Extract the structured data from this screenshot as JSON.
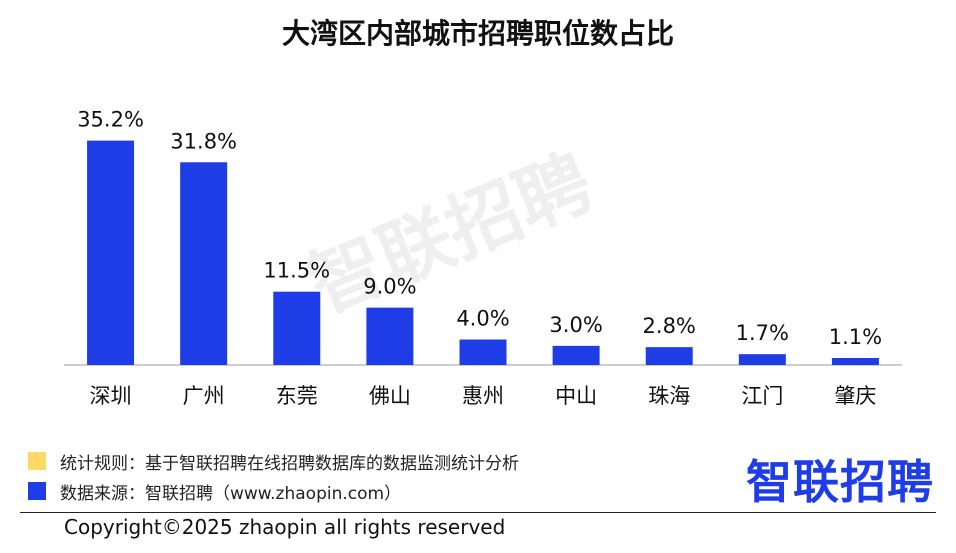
{
  "title": "大湾区内部城市招聘职位数占比",
  "watermark": "智联招聘",
  "chart_data": {
    "type": "bar",
    "title": "大湾区内部城市招聘职位数占比",
    "categories": [
      "深圳",
      "广州",
      "东莞",
      "佛山",
      "惠州",
      "中山",
      "珠海",
      "江门",
      "肇庆"
    ],
    "values": [
      35.2,
      31.8,
      11.5,
      9.0,
      4.0,
      3.0,
      2.8,
      1.7,
      1.1
    ],
    "value_labels": [
      "35.2%",
      "31.8%",
      "11.5%",
      "9.0%",
      "4.0%",
      "3.0%",
      "2.8%",
      "1.7%",
      "1.1%"
    ],
    "unit": "%",
    "xlabel": "",
    "ylabel": "",
    "ylim": [
      0,
      40
    ],
    "grid": false,
    "bar_color": "#1f3de6"
  },
  "notes": {
    "rule_label": "统计规则：基于智联招聘在线招聘数据库的数据监测统计分析",
    "rule_color": "#ffd966",
    "source_label": "数据来源：智联招聘（www.zhaopin.com）",
    "source_color": "#1f3de6"
  },
  "logo": "智联招聘",
  "copyright": "Copyright©2025 zhaopin all rights reserved"
}
